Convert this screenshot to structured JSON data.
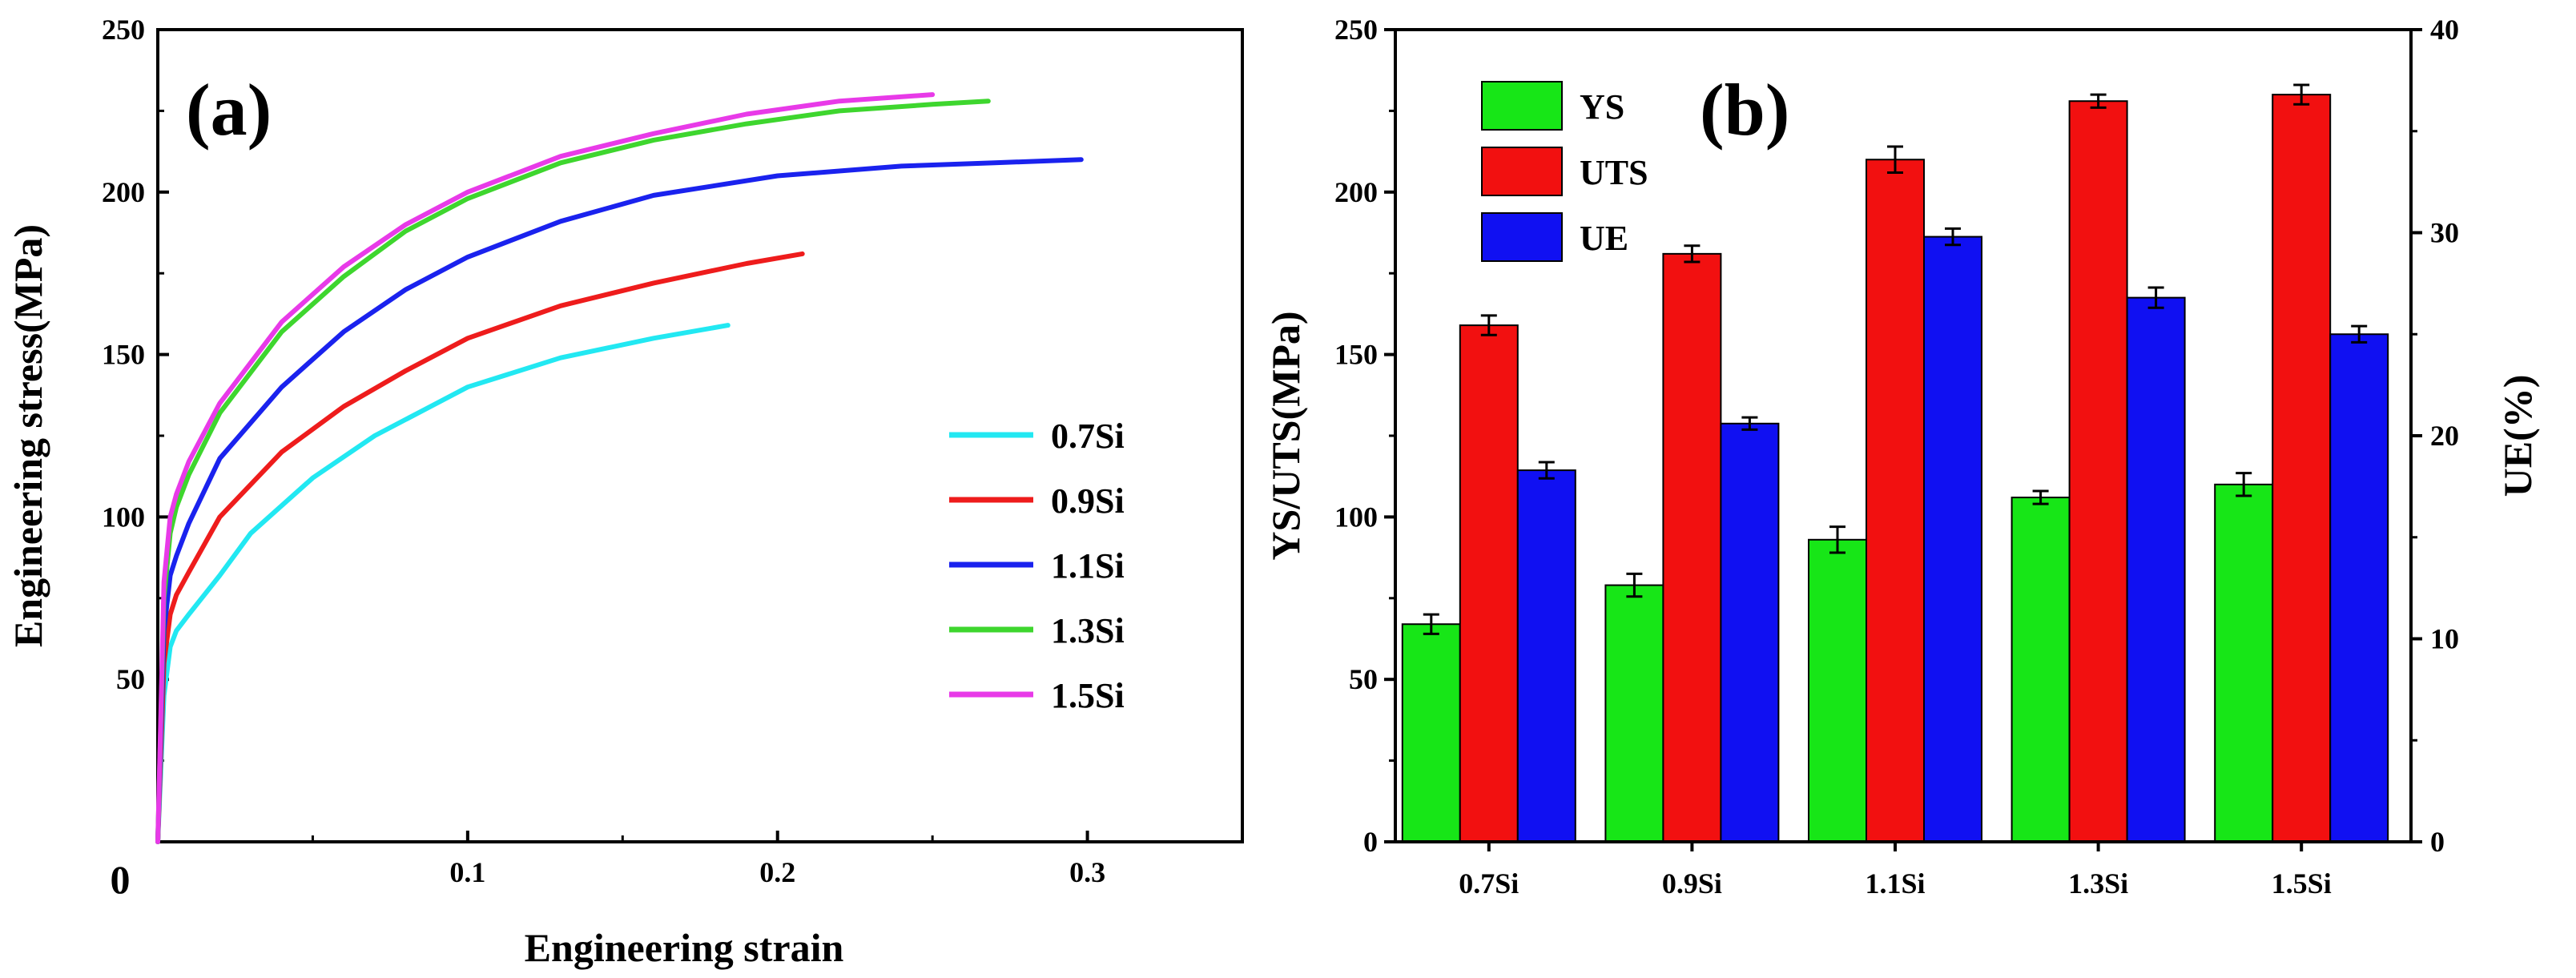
{
  "figure_labels": {
    "a": "(a)",
    "b": "(b)"
  },
  "chart_data": [
    {
      "type": "line",
      "panel": "(a)",
      "xlabel": "Engineering strain",
      "ylabel": "Engineering stress(MPa)",
      "xlim": [
        0,
        0.35
      ],
      "ylim": [
        0,
        250
      ],
      "x_ticks": [
        0.1,
        0.2,
        0.3
      ],
      "x_tick_labels": [
        "0.1",
        "0.2",
        "0.3"
      ],
      "y_ticks": [
        50,
        100,
        150,
        200,
        250
      ],
      "y_tick_labels": [
        "50",
        "100",
        "150",
        "200",
        "250"
      ],
      "origin_label": "0",
      "legend_position": "right-middle",
      "series": [
        {
          "name": "0.7Si",
          "color": "#22e8f2",
          "x": [
            0,
            0.002,
            0.004,
            0.006,
            0.01,
            0.02,
            0.03,
            0.05,
            0.07,
            0.1,
            0.13,
            0.16,
            0.184
          ],
          "y": [
            0,
            45,
            60,
            65,
            70,
            82,
            95,
            112,
            125,
            140,
            149,
            155,
            159
          ]
        },
        {
          "name": "0.9Si",
          "color": "#ee1c1c",
          "x": [
            0,
            0.002,
            0.004,
            0.006,
            0.01,
            0.02,
            0.04,
            0.06,
            0.08,
            0.1,
            0.13,
            0.16,
            0.19,
            0.208
          ],
          "y": [
            0,
            55,
            70,
            76,
            83,
            100,
            120,
            134,
            145,
            155,
            165,
            172,
            178,
            181
          ]
        },
        {
          "name": "1.1Si",
          "color": "#1a22ee",
          "x": [
            0,
            0.002,
            0.004,
            0.006,
            0.01,
            0.02,
            0.04,
            0.06,
            0.08,
            0.1,
            0.13,
            0.16,
            0.2,
            0.24,
            0.27,
            0.298
          ],
          "y": [
            0,
            65,
            82,
            88,
            98,
            118,
            140,
            157,
            170,
            180,
            191,
            199,
            205,
            208,
            209,
            210
          ]
        },
        {
          "name": "1.3Si",
          "color": "#3ed62e",
          "x": [
            0,
            0.002,
            0.004,
            0.006,
            0.01,
            0.02,
            0.04,
            0.06,
            0.08,
            0.1,
            0.13,
            0.16,
            0.19,
            0.22,
            0.25,
            0.268
          ],
          "y": [
            0,
            75,
            95,
            103,
            113,
            132,
            157,
            174,
            188,
            198,
            209,
            216,
            221,
            225,
            227,
            228
          ]
        },
        {
          "name": "1.5Si",
          "color": "#e83ae8",
          "x": [
            0,
            0.002,
            0.004,
            0.006,
            0.01,
            0.02,
            0.04,
            0.06,
            0.08,
            0.1,
            0.13,
            0.16,
            0.19,
            0.22,
            0.25
          ],
          "y": [
            0,
            80,
            100,
            107,
            117,
            135,
            160,
            177,
            190,
            200,
            211,
            218,
            224,
            228,
            230
          ]
        }
      ]
    },
    {
      "type": "bar",
      "panel": "(b)",
      "categories": [
        "0.7Si",
        "0.9Si",
        "1.1Si",
        "1.3Si",
        "1.5Si"
      ],
      "ylabel": "YS/UTS(MPa)",
      "y2label": "UE(%)",
      "ylim": [
        0,
        250
      ],
      "y2lim": [
        0,
        40
      ],
      "y_ticks": [
        0,
        50,
        100,
        150,
        200,
        250
      ],
      "y_tick_labels": [
        "0",
        "50",
        "100",
        "150",
        "200",
        "250"
      ],
      "y2_ticks": [
        0,
        10,
        20,
        30,
        40
      ],
      "y2_tick_labels": [
        "0",
        "10",
        "20",
        "30",
        "40"
      ],
      "legend_position": "top-left",
      "series": [
        {
          "name": "YS",
          "axis": "left",
          "color": "#17e617",
          "values": [
            67,
            79,
            93,
            106,
            110
          ],
          "errors": [
            3,
            3.5,
            4,
            2,
            3.5
          ]
        },
        {
          "name": "UTS",
          "axis": "left",
          "color": "#f21010",
          "values": [
            159,
            181,
            210,
            228,
            230
          ],
          "errors": [
            3,
            2.5,
            4,
            2,
            3
          ]
        },
        {
          "name": "UE",
          "axis": "right",
          "color": "#1010f2",
          "values": [
            18.3,
            20.6,
            29.8,
            26.8,
            25.0
          ],
          "errors": [
            0.4,
            0.3,
            0.4,
            0.5,
            0.4
          ]
        }
      ]
    }
  ]
}
